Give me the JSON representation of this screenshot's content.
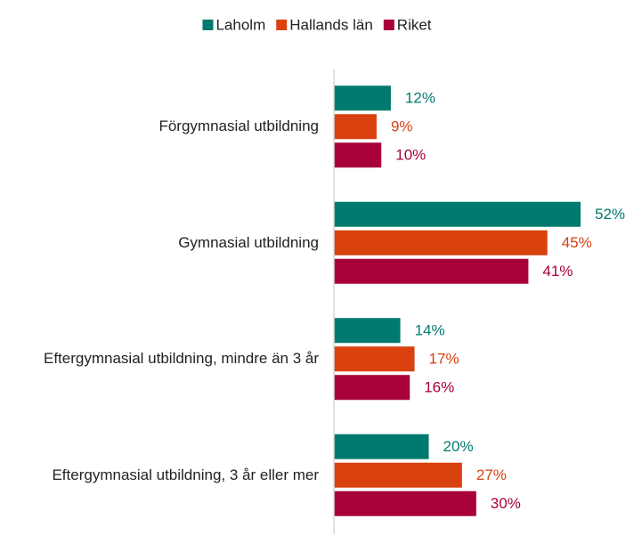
{
  "chart_data": {
    "type": "bar",
    "orientation": "horizontal",
    "categories": [
      "Förgymnasial utbildning",
      "Gymnasial utbildning",
      "Eftergymnasial utbildning, mindre än 3 år",
      "Eftergymnasial utbildning, 3 år eller mer"
    ],
    "series": [
      {
        "name": "Laholm",
        "color": "#007a6e",
        "values": [
          12,
          52,
          14,
          20
        ],
        "value_labels": [
          "12%",
          "52%",
          "14%",
          "20%"
        ]
      },
      {
        "name": "Hallands län",
        "color": "#d9410f",
        "values": [
          9,
          45,
          17,
          27
        ],
        "value_labels": [
          "9%",
          "45%",
          "17%",
          "27%"
        ]
      },
      {
        "name": "Riket",
        "color": "#a8003a",
        "values": [
          10,
          41,
          16,
          30
        ],
        "value_labels": [
          "10%",
          "41%",
          "16%",
          "30%"
        ]
      }
    ],
    "legend": "top"
  }
}
